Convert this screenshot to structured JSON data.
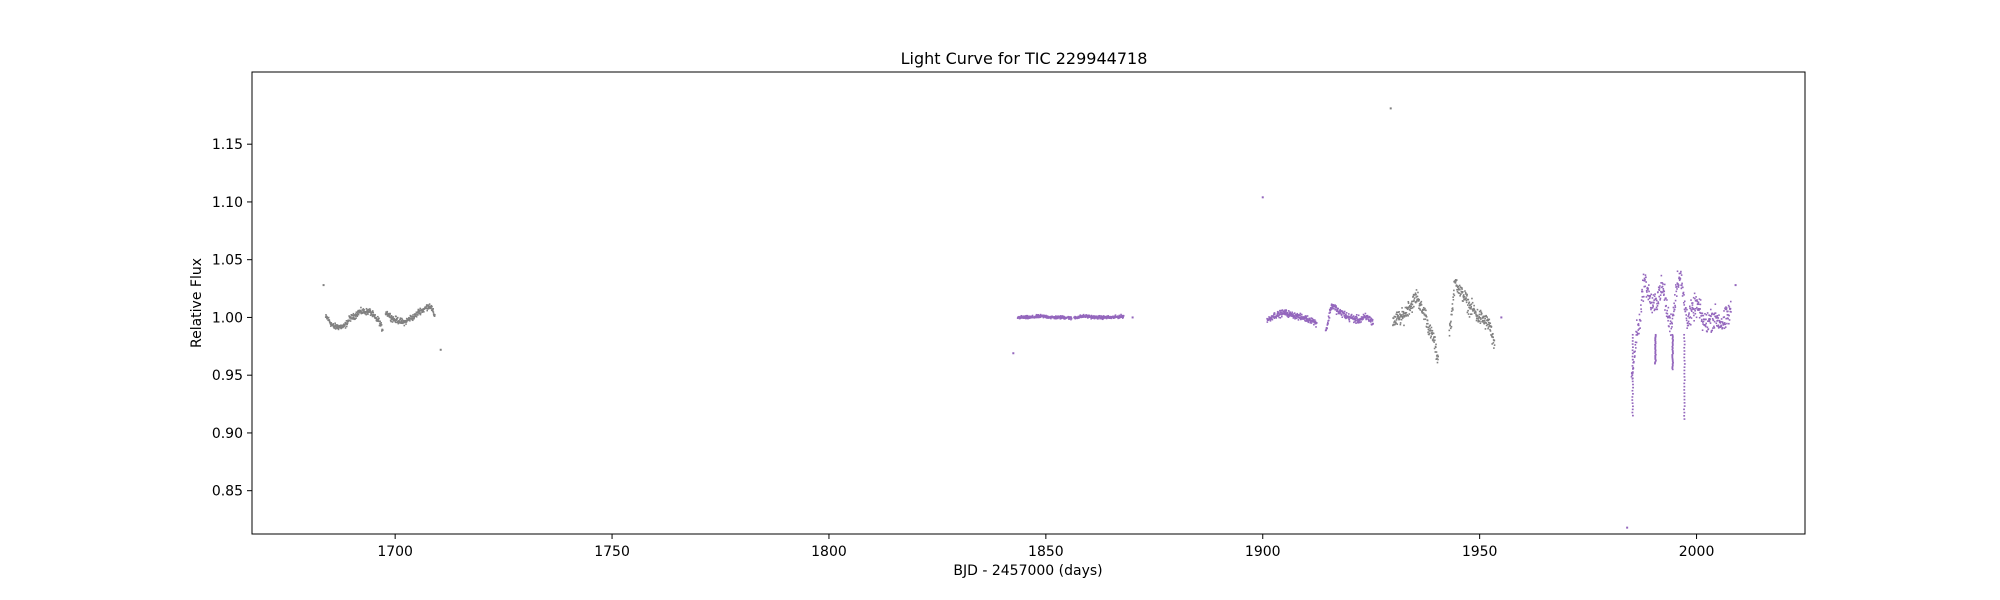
{
  "chart_data": {
    "type": "scatter",
    "title": "Light Curve for TIC 229944718",
    "xlabel": "BJD - 2457000 (days)",
    "ylabel": "Relative Flux",
    "xlim": [
      1667,
      2025
    ],
    "ylim": [
      0.8125,
      1.2125
    ],
    "xticks": [
      1700,
      1750,
      1800,
      1850,
      1900,
      1950,
      2000
    ],
    "yticks": [
      0.85,
      0.9,
      0.95,
      1.0,
      1.05,
      1.1,
      1.15
    ],
    "ytick_labels": [
      "0.85",
      "0.90",
      "0.95",
      "1.00",
      "1.05",
      "1.10",
      "1.15"
    ],
    "grid": false,
    "legend": "none",
    "series": [
      {
        "color": "#808080",
        "segments": [
          {
            "x": [
              1684.0,
              1686.0,
              1688.0,
              1690.0,
              1692.0,
              1694.0,
              1696.0,
              1697.2
            ],
            "y": [
              1.0,
              0.992,
              0.992,
              1.0,
              1.005,
              1.005,
              0.998,
              0.99
            ],
            "scatter": 0.004
          },
          {
            "x": [
              1697.8,
              1700.0,
              1702.0,
              1704.0,
              1706.0,
              1708.0,
              1709.2
            ],
            "y": [
              1.004,
              0.998,
              0.996,
              1.0,
              1.006,
              1.01,
              1.002
            ],
            "scatter": 0.004
          },
          {
            "x": [
              1930.0,
              1932.0,
              1934.0,
              1935.5,
              1937.0,
              1939.0,
              1940.5
            ],
            "y": [
              0.997,
              1.0,
              1.01,
              1.018,
              1.005,
              0.985,
              0.965
            ],
            "scatter": 0.01
          },
          {
            "x": [
              1943.0,
              1944.5,
              1946.0,
              1948.0,
              1950.0,
              1952.0,
              1953.5
            ],
            "y": [
              0.99,
              1.03,
              1.02,
              1.008,
              1.0,
              0.995,
              0.975
            ],
            "scatter": 0.01
          }
        ],
        "outliers": {
          "x": [
            1683.5,
            1710.5,
            1929.5
          ],
          "y": [
            1.028,
            0.972,
            1.181
          ]
        }
      },
      {
        "color": "#9467bd",
        "segments": [
          {
            "x": [
              1843.5,
              1846.0,
              1849.0,
              1852.0,
              1855.0,
              1856.0
            ],
            "y": [
              1.0,
              1.0,
              1.001,
              1.0,
              1.0,
              0.999
            ],
            "scatter": 0.002
          },
          {
            "x": [
              1856.5,
              1859.0,
              1862.0,
              1865.0,
              1868.0
            ],
            "y": [
              1.0,
              1.001,
              1.0,
              1.0,
              1.001
            ],
            "scatter": 0.002
          },
          {
            "x": [
              1901.0,
              1903.0,
              1905.0,
              1907.0,
              1909.0,
              1911.0,
              1912.5
            ],
            "y": [
              0.998,
              1.002,
              1.004,
              1.002,
              1.0,
              0.998,
              0.995
            ],
            "scatter": 0.004
          },
          {
            "x": [
              1914.5,
              1916.0,
              1918.0,
              1920.0,
              1922.0,
              1924.0,
              1925.5
            ],
            "y": [
              0.99,
              1.01,
              1.004,
              1.0,
              0.998,
              1.0,
              0.996
            ],
            "scatter": 0.005
          },
          {
            "x": [
              1985.0,
              1986.5,
              1988.0,
              1990.0,
              1992.0,
              1994.0,
              1996.0,
              1998.0,
              2000.0,
              2002.0,
              2004.0,
              2006.0,
              2008.0
            ],
            "y": [
              0.95,
              0.99,
              1.03,
              1.01,
              1.025,
              0.995,
              1.035,
              1.0,
              1.01,
              0.995,
              1.0,
              0.995,
              1.005
            ],
            "scatter": 0.015
          }
        ],
        "dips": {
          "x": [
            1985.3,
            1997.2,
            1990.5,
            1994.5
          ],
          "y": [
            0.915,
            0.912,
            0.96,
            0.955
          ]
        },
        "outliers": {
          "x": [
            1842.5,
            1870.0,
            1900.0,
            1955.0,
            1984.0,
            2009.0
          ],
          "y": [
            0.969,
            1.0,
            1.104,
            1.0,
            0.818,
            1.028
          ]
        }
      }
    ]
  }
}
